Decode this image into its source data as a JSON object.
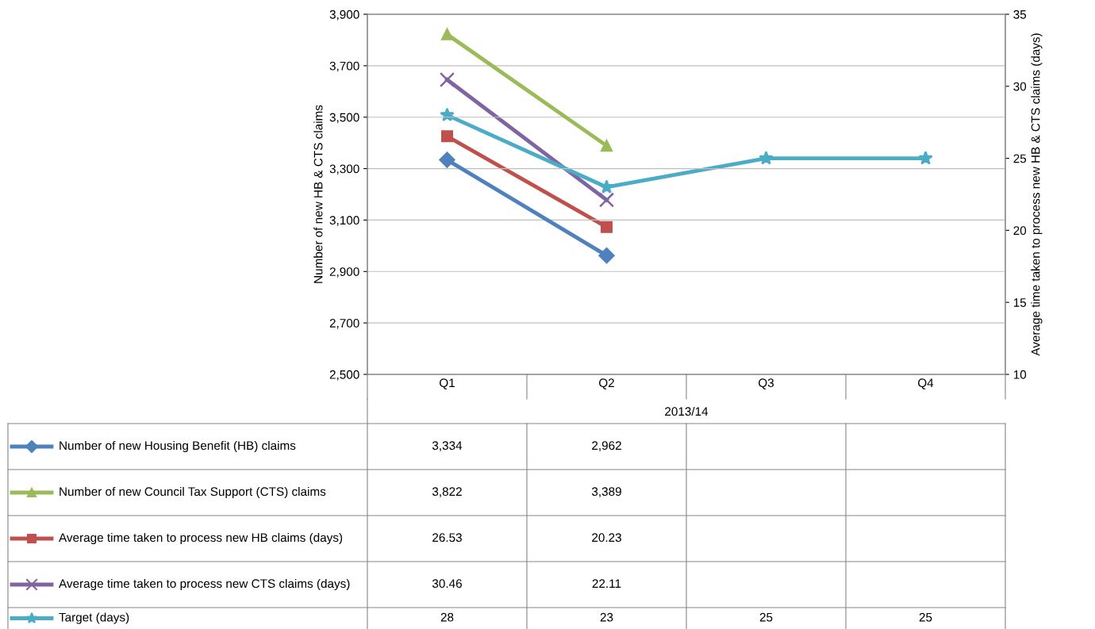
{
  "chart_data": {
    "type": "line",
    "categories": [
      "Q1",
      "Q2",
      "Q3",
      "Q4"
    ],
    "xlabel": "2013/14",
    "ylabel": "Number of new HB & CTS claims",
    "y2label": "Average time taken to process new HB & CTS claims (days)",
    "ylim": [
      2500,
      3900
    ],
    "yticks": [
      {
        "value": 2500,
        "label": "2,500"
      },
      {
        "value": 2700,
        "label": "2,700"
      },
      {
        "value": 2900,
        "label": "2,900"
      },
      {
        "value": 3100,
        "label": "3,100"
      },
      {
        "value": 3300,
        "label": "3,300"
      },
      {
        "value": 3500,
        "label": "3,500"
      },
      {
        "value": 3700,
        "label": "3,700"
      },
      {
        "value": 3900,
        "label": "3,900"
      }
    ],
    "y2lim": [
      10,
      35
    ],
    "y2ticks": [
      10,
      15,
      20,
      25,
      30,
      35
    ],
    "grid": "y",
    "legend": "bottom",
    "series": [
      {
        "name": "Number of new Housing Benefit (HB) claims",
        "color": "#4f81bd",
        "marker": "diamond",
        "values": [
          3334,
          2962,
          null,
          null
        ],
        "value_labels": [
          "3,334",
          "2,962",
          null,
          null
        ]
      },
      {
        "name": "Number of new Council Tax Support (CTS) claims",
        "color": "#9bbb59",
        "marker": "triangle",
        "values": [
          3822,
          3389,
          null,
          null
        ],
        "value_labels": [
          "3,822",
          "3,389",
          null,
          null
        ]
      },
      {
        "name": "Average time taken to process new HB claims (days)",
        "color": "#c0504d",
        "marker": "square",
        "axis": "y2",
        "values": [
          26.53,
          20.23,
          null,
          null
        ],
        "value_labels": [
          "26.53",
          "20.23",
          null,
          null
        ]
      },
      {
        "name": "Average time taken to process new CTS claims (days)",
        "color": "#8064a2",
        "marker": "cross",
        "axis": "y2",
        "values": [
          30.46,
          22.11,
          null,
          null
        ],
        "value_labels": [
          "30.46",
          "22.11",
          null,
          null
        ]
      },
      {
        "name": "Target (days)",
        "color": "#4bacc6",
        "marker": "star",
        "axis": "y2",
        "values": [
          28,
          23,
          25,
          25
        ],
        "value_labels": [
          "28",
          "23",
          "25",
          "25"
        ]
      }
    ]
  }
}
